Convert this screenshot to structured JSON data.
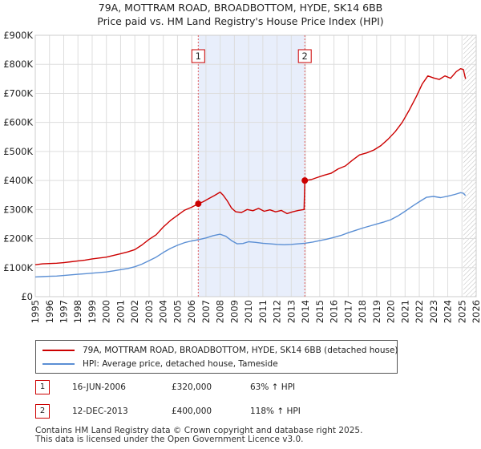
{
  "chart_data": {
    "type": "line",
    "title": "79A, MOTTRAM ROAD, BROADBOTTOM, HYDE, SK14 6BB",
    "subtitle": "Price paid vs. HM Land Registry's House Price Index (HPI)",
    "xlim": [
      1995,
      2026
    ],
    "ylim": [
      0,
      900000
    ],
    "x_ticks": [
      "1995",
      "1996",
      "1997",
      "1998",
      "1999",
      "2000",
      "2001",
      "2002",
      "2003",
      "2004",
      "2005",
      "2006",
      "2007",
      "2008",
      "2009",
      "2010",
      "2011",
      "2012",
      "2013",
      "2014",
      "2015",
      "2016",
      "2017",
      "2018",
      "2019",
      "2020",
      "2021",
      "2022",
      "2023",
      "2024",
      "2025",
      "2026"
    ],
    "y_ticks": [
      {
        "value": 0,
        "label": "£0"
      },
      {
        "value": 100000,
        "label": "£100K"
      },
      {
        "value": 200000,
        "label": "£200K"
      },
      {
        "value": 300000,
        "label": "£300K"
      },
      {
        "value": 400000,
        "label": "£400K"
      },
      {
        "value": 500000,
        "label": "£500K"
      },
      {
        "value": 600000,
        "label": "£600K"
      },
      {
        "value": 700000,
        "label": "£700K"
      },
      {
        "value": 800000,
        "label": "£800K"
      },
      {
        "value": 900000,
        "label": "£900K"
      }
    ],
    "shaded_span": [
      2006.46,
      2013.95
    ],
    "hatch_from": 2025.1,
    "markers": [
      {
        "label": "1",
        "x": 2006.46,
        "y": 320000
      },
      {
        "label": "2",
        "x": 2013.95,
        "y": 400000
      }
    ],
    "series": [
      {
        "name": "79A, MOTTRAM ROAD, BROADBOTTOM, HYDE, SK14 6BB (detached house)",
        "color": "#cc0000",
        "points": [
          [
            1995.0,
            110000
          ],
          [
            1995.5,
            113000
          ],
          [
            1996.0,
            114000
          ],
          [
            1996.5,
            115000
          ],
          [
            1997.0,
            117000
          ],
          [
            1997.5,
            120000
          ],
          [
            1998.0,
            123000
          ],
          [
            1998.5,
            126000
          ],
          [
            1999.0,
            130000
          ],
          [
            1999.5,
            133000
          ],
          [
            2000.0,
            136000
          ],
          [
            2000.5,
            142000
          ],
          [
            2001.0,
            148000
          ],
          [
            2001.5,
            154000
          ],
          [
            2002.0,
            162000
          ],
          [
            2002.5,
            178000
          ],
          [
            2003.0,
            197000
          ],
          [
            2003.5,
            213000
          ],
          [
            2004.0,
            240000
          ],
          [
            2004.5,
            262000
          ],
          [
            2005.0,
            280000
          ],
          [
            2005.5,
            298000
          ],
          [
            2006.0,
            308000
          ],
          [
            2006.46,
            320000
          ],
          [
            2006.8,
            327000
          ],
          [
            2007.2,
            338000
          ],
          [
            2007.6,
            348000
          ],
          [
            2008.0,
            360000
          ],
          [
            2008.2,
            350000
          ],
          [
            2008.5,
            330000
          ],
          [
            2008.8,
            305000
          ],
          [
            2009.1,
            292000
          ],
          [
            2009.5,
            290000
          ],
          [
            2009.9,
            300000
          ],
          [
            2010.3,
            296000
          ],
          [
            2010.7,
            304000
          ],
          [
            2011.1,
            294000
          ],
          [
            2011.5,
            299000
          ],
          [
            2011.9,
            292000
          ],
          [
            2012.3,
            297000
          ],
          [
            2012.7,
            286000
          ],
          [
            2013.1,
            292000
          ],
          [
            2013.5,
            297000
          ],
          [
            2013.9,
            300000
          ],
          [
            2013.95,
            400000
          ],
          [
            2014.4,
            403000
          ],
          [
            2014.8,
            410000
          ],
          [
            2015.3,
            418000
          ],
          [
            2015.8,
            425000
          ],
          [
            2016.3,
            440000
          ],
          [
            2016.8,
            450000
          ],
          [
            2017.3,
            470000
          ],
          [
            2017.8,
            488000
          ],
          [
            2018.3,
            495000
          ],
          [
            2018.8,
            505000
          ],
          [
            2019.3,
            520000
          ],
          [
            2019.8,
            542000
          ],
          [
            2020.3,
            568000
          ],
          [
            2020.8,
            600000
          ],
          [
            2021.3,
            643000
          ],
          [
            2021.8,
            690000
          ],
          [
            2022.2,
            732000
          ],
          [
            2022.6,
            760000
          ],
          [
            2023.0,
            753000
          ],
          [
            2023.4,
            748000
          ],
          [
            2023.8,
            760000
          ],
          [
            2024.2,
            752000
          ],
          [
            2024.6,
            775000
          ],
          [
            2024.9,
            785000
          ],
          [
            2025.1,
            782000
          ],
          [
            2025.25,
            750000
          ]
        ]
      },
      {
        "name": "HPI: Average price, detached house, Tameside",
        "color": "#5b8fd4",
        "points": [
          [
            1995.0,
            68000
          ],
          [
            1995.5,
            69000
          ],
          [
            1996.0,
            70000
          ],
          [
            1996.5,
            71000
          ],
          [
            1997.0,
            73000
          ],
          [
            1997.5,
            75000
          ],
          [
            1998.0,
            77000
          ],
          [
            1998.5,
            79000
          ],
          [
            1999.0,
            81000
          ],
          [
            1999.5,
            83000
          ],
          [
            2000.0,
            85000
          ],
          [
            2000.5,
            89000
          ],
          [
            2001.0,
            93000
          ],
          [
            2001.5,
            97000
          ],
          [
            2002.0,
            103000
          ],
          [
            2002.5,
            112000
          ],
          [
            2003.0,
            124000
          ],
          [
            2003.5,
            136000
          ],
          [
            2004.0,
            152000
          ],
          [
            2004.5,
            166000
          ],
          [
            2005.0,
            177000
          ],
          [
            2005.5,
            186000
          ],
          [
            2006.0,
            192000
          ],
          [
            2006.46,
            196000
          ],
          [
            2007.0,
            202000
          ],
          [
            2007.5,
            210000
          ],
          [
            2008.0,
            215000
          ],
          [
            2008.4,
            208000
          ],
          [
            2008.8,
            193000
          ],
          [
            2009.2,
            182000
          ],
          [
            2009.6,
            183000
          ],
          [
            2010.0,
            189000
          ],
          [
            2010.5,
            187000
          ],
          [
            2011.0,
            184000
          ],
          [
            2011.5,
            182000
          ],
          [
            2012.0,
            180000
          ],
          [
            2012.5,
            179000
          ],
          [
            2013.0,
            180000
          ],
          [
            2013.5,
            182000
          ],
          [
            2013.95,
            184000
          ],
          [
            2014.5,
            188000
          ],
          [
            2015.0,
            193000
          ],
          [
            2015.5,
            198000
          ],
          [
            2016.0,
            204000
          ],
          [
            2016.5,
            211000
          ],
          [
            2017.0,
            220000
          ],
          [
            2017.5,
            228000
          ],
          [
            2018.0,
            236000
          ],
          [
            2018.5,
            243000
          ],
          [
            2019.0,
            250000
          ],
          [
            2019.5,
            257000
          ],
          [
            2020.0,
            265000
          ],
          [
            2020.5,
            278000
          ],
          [
            2021.0,
            294000
          ],
          [
            2021.5,
            311000
          ],
          [
            2022.0,
            327000
          ],
          [
            2022.5,
            342000
          ],
          [
            2023.0,
            345000
          ],
          [
            2023.5,
            341000
          ],
          [
            2024.0,
            346000
          ],
          [
            2024.5,
            352000
          ],
          [
            2024.9,
            358000
          ],
          [
            2025.1,
            356000
          ],
          [
            2025.25,
            348000
          ]
        ]
      }
    ]
  },
  "legend": {
    "items": [
      {
        "label": "79A, MOTTRAM ROAD, BROADBOTTOM, HYDE, SK14 6BB (detached house)",
        "color": "#cc0000"
      },
      {
        "label": "HPI: Average price, detached house, Tameside",
        "color": "#5b8fd4"
      }
    ]
  },
  "transactions": [
    {
      "num": "1",
      "date": "16-JUN-2006",
      "price": "£320,000",
      "hpi": "63% ↑ HPI"
    },
    {
      "num": "2",
      "date": "12-DEC-2013",
      "price": "£400,000",
      "hpi": "118% ↑ HPI"
    }
  ],
  "footer": {
    "line1": "Contains HM Land Registry data © Crown copyright and database right 2025.",
    "line2": "This data is licensed under the Open Government Licence v3.0."
  }
}
